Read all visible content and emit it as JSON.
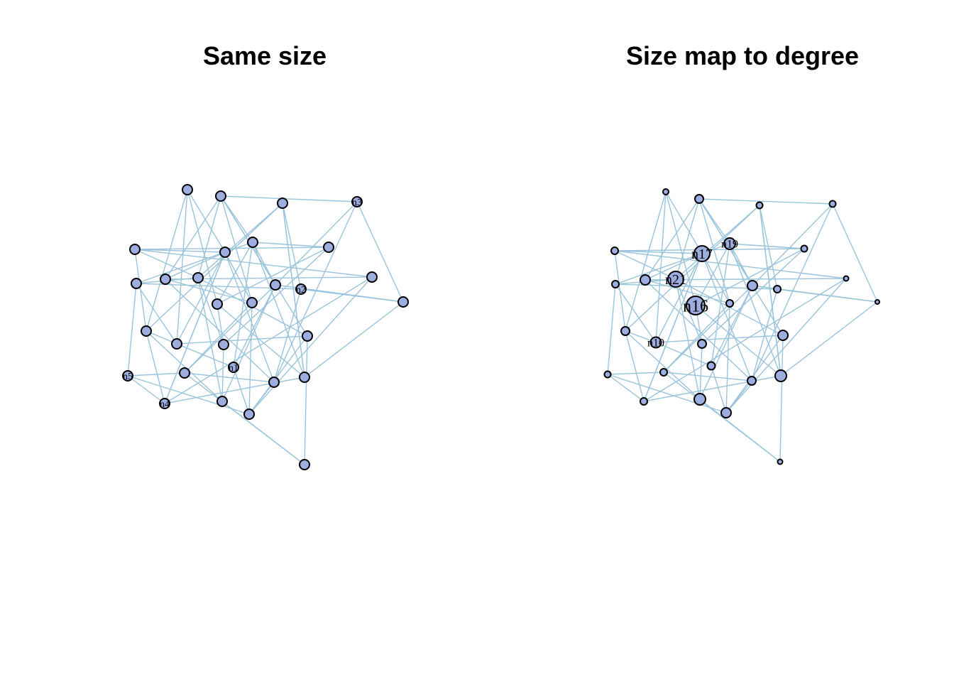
{
  "panels": [
    {
      "title": "Same size"
    },
    {
      "title": "Size map to degree"
    }
  ],
  "left_labels": [
    "n1",
    "n2",
    "n3",
    "n4",
    "n5"
  ],
  "right_labels": [
    "n16",
    "n17",
    "n21",
    "n19",
    "n10"
  ],
  "colors": {
    "edge": "#9ac4dc",
    "node_fill": "#9eade0",
    "node_stroke": "#000000"
  }
}
